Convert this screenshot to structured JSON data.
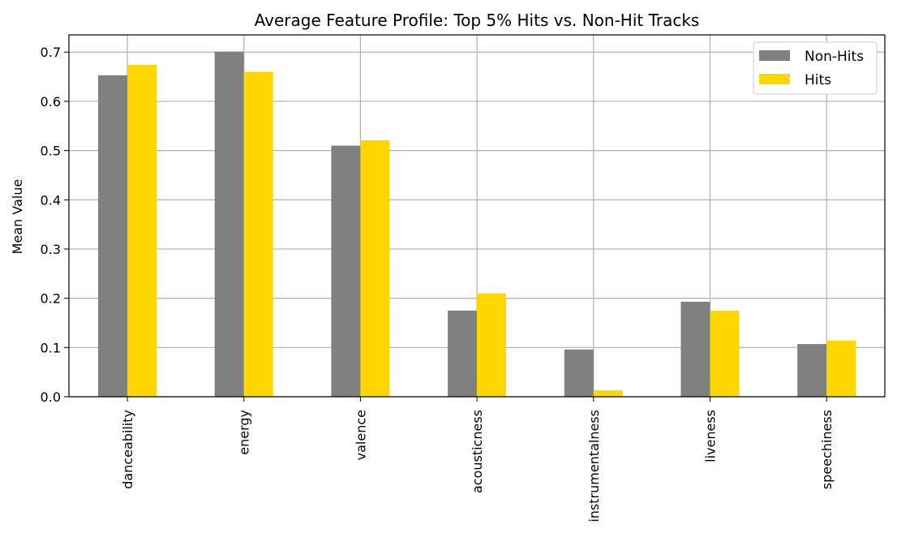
{
  "chart_data": {
    "type": "bar",
    "title": "Average Feature Profile: Top 5% Hits vs. Non-Hit Tracks",
    "xlabel": "",
    "ylabel": "Mean Value",
    "categories": [
      "danceability",
      "energy",
      "valence",
      "acousticness",
      "instrumentalness",
      "liveness",
      "speechiness"
    ],
    "series": [
      {
        "name": "Non-Hits",
        "color": "#808080",
        "values": [
          0.653,
          0.701,
          0.51,
          0.175,
          0.096,
          0.193,
          0.107
        ]
      },
      {
        "name": "Hits",
        "color": "#ffd700",
        "values": [
          0.674,
          0.66,
          0.521,
          0.21,
          0.013,
          0.175,
          0.114
        ]
      }
    ],
    "ylim": [
      0,
      0.735
    ],
    "yticks": [
      "0.0",
      "0.1",
      "0.2",
      "0.3",
      "0.4",
      "0.5",
      "0.6",
      "0.7"
    ],
    "grid": true,
    "legend_position": "top-right"
  }
}
